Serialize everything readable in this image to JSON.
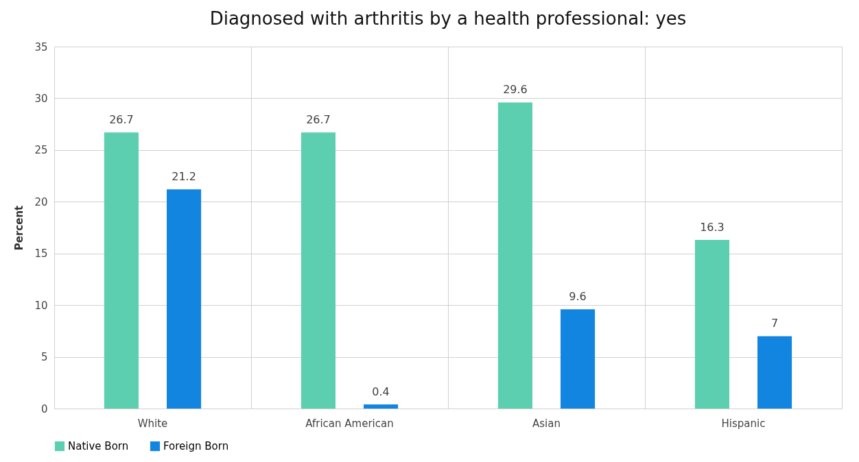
{
  "chart_data": {
    "type": "bar",
    "title": "Diagnosed with arthritis by a health professional: yes",
    "ylabel": "Percent",
    "categories": [
      "White",
      "African American",
      "Asian",
      "Hispanic"
    ],
    "series": [
      {
        "name": "Native Born",
        "color": "#5ccfb0",
        "values": [
          26.7,
          26.7,
          29.6,
          16.3
        ]
      },
      {
        "name": "Foreign Born",
        "color": "#1185e0",
        "values": [
          21.2,
          0.4,
          9.6,
          7
        ]
      }
    ],
    "ylim": [
      0,
      35
    ],
    "yticks": [
      0,
      5,
      10,
      15,
      20,
      25,
      30,
      35
    ],
    "grid": true,
    "legend": "bottom",
    "data_labels": true
  }
}
